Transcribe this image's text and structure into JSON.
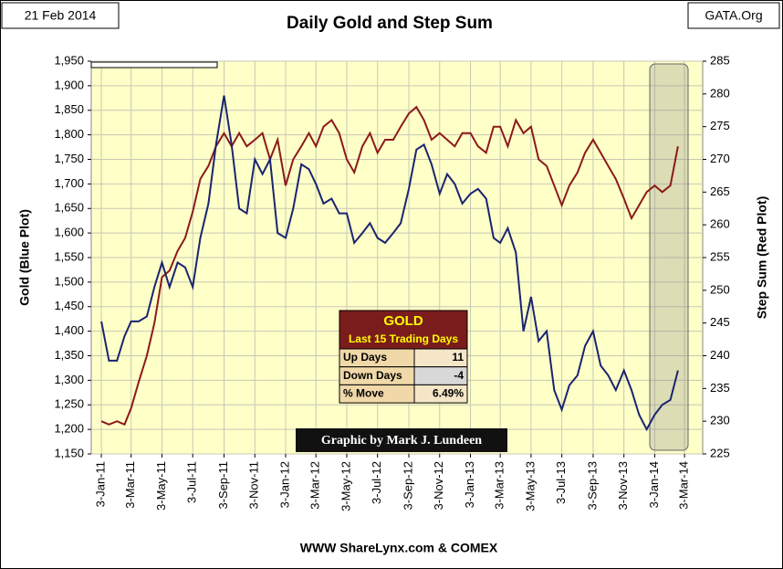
{
  "chart_data": {
    "type": "line",
    "title": "Daily Gold and Step Sum",
    "date_label": "21 Feb 2014",
    "source_label": "GATA.Org",
    "credit": "Graphic by Mark J. Lundeen",
    "footer": "WWW ShareLynx.com & COMEX",
    "ylabel": "Gold  (Blue Plot)",
    "y2label": "Step Sum  (Red Plot)",
    "x": [
      "3-Jan-11",
      "18-Jan-11",
      "3-Feb-11",
      "18-Feb-11",
      "3-Mar-11",
      "18-Mar-11",
      "3-Apr-11",
      "18-Apr-11",
      "3-May-11",
      "18-May-11",
      "3-Jun-11",
      "18-Jun-11",
      "3-Jul-11",
      "18-Jul-11",
      "3-Aug-11",
      "18-Aug-11",
      "3-Sep-11",
      "18-Sep-11",
      "3-Oct-11",
      "18-Oct-11",
      "3-Nov-11",
      "18-Nov-11",
      "3-Dec-11",
      "18-Dec-11",
      "3-Jan-12",
      "18-Jan-12",
      "3-Feb-12",
      "18-Feb-12",
      "3-Mar-12",
      "18-Mar-12",
      "3-Apr-12",
      "18-Apr-12",
      "3-May-12",
      "18-May-12",
      "3-Jun-12",
      "18-Jun-12",
      "3-Jul-12",
      "18-Jul-12",
      "3-Aug-12",
      "18-Aug-12",
      "3-Sep-12",
      "18-Sep-12",
      "3-Oct-12",
      "18-Oct-12",
      "3-Nov-12",
      "18-Nov-12",
      "3-Dec-12",
      "18-Dec-12",
      "3-Jan-13",
      "18-Jan-13",
      "3-Feb-13",
      "18-Feb-13",
      "3-Mar-13",
      "18-Mar-13",
      "3-Apr-13",
      "18-Apr-13",
      "3-May-13",
      "18-May-13",
      "3-Jun-13",
      "18-Jun-13",
      "3-Jul-13",
      "18-Jul-13",
      "3-Aug-13",
      "18-Aug-13",
      "3-Sep-13",
      "18-Sep-13",
      "3-Oct-13",
      "18-Oct-13",
      "3-Nov-13",
      "18-Nov-13",
      "3-Dec-13",
      "18-Dec-13",
      "3-Jan-14",
      "18-Jan-14",
      "3-Feb-14",
      "18-Feb-14"
    ],
    "series": [
      {
        "name": "Gold",
        "color": "#1a2470",
        "values": [
          1420,
          1340,
          1340,
          1390,
          1420,
          1420,
          1430,
          1490,
          1540,
          1490,
          1540,
          1530,
          1490,
          1590,
          1660,
          1780,
          1880,
          1780,
          1650,
          1640,
          1750,
          1720,
          1750,
          1600,
          1590,
          1650,
          1740,
          1730,
          1700,
          1660,
          1670,
          1640,
          1640,
          1580,
          1600,
          1620,
          1590,
          1580,
          1600,
          1620,
          1690,
          1770,
          1780,
          1740,
          1680,
          1720,
          1700,
          1660,
          1680,
          1690,
          1670,
          1590,
          1580,
          1610,
          1560,
          1400,
          1470,
          1380,
          1400,
          1280,
          1240,
          1290,
          1310,
          1370,
          1400,
          1330,
          1310,
          1280,
          1320,
          1280,
          1230,
          1200,
          1230,
          1250,
          1260,
          1320
        ]
      },
      {
        "name": "Step Sum",
        "color": "#8b1a1a",
        "axis": "y2",
        "values": [
          230,
          229.5,
          230,
          229.5,
          232,
          236,
          240,
          245,
          252,
          253,
          256,
          258,
          262,
          267,
          269,
          272,
          274,
          272,
          274,
          272,
          273,
          274,
          270,
          273,
          266,
          270,
          272,
          274,
          272,
          275,
          276,
          274,
          270,
          268,
          272,
          274,
          271,
          273,
          273,
          275,
          277,
          278,
          276,
          273,
          274,
          273,
          272,
          274,
          274,
          272,
          271,
          275,
          275,
          272,
          276,
          274,
          275,
          270,
          269,
          266,
          263,
          266,
          268,
          271,
          273,
          271,
          269,
          267,
          264,
          261,
          263,
          265,
          266,
          265,
          266,
          272
        ]
      }
    ],
    "xlim": [
      "14-Dec-10",
      "8-Apr-14"
    ],
    "xticks": [
      "3-Jan-11",
      "3-Mar-11",
      "3-May-11",
      "3-Jul-11",
      "3-Sep-11",
      "3-Nov-11",
      "3-Jan-12",
      "3-Mar-12",
      "3-May-12",
      "3-Jul-12",
      "3-Sep-12",
      "3-Nov-12",
      "3-Jan-13",
      "3-Mar-13",
      "3-May-13",
      "3-Jul-13",
      "3-Sep-13",
      "3-Nov-13",
      "3-Jan-14",
      "3-Mar-14"
    ],
    "ylim": [
      1150,
      1950
    ],
    "yticks": [
      {
        "value": 1150,
        "label": "1,150"
      },
      {
        "value": 1200,
        "label": "1,200"
      },
      {
        "value": 1250,
        "label": "1,250"
      },
      {
        "value": 1300,
        "label": "1,300"
      },
      {
        "value": 1350,
        "label": "1,350"
      },
      {
        "value": 1400,
        "label": "1,400"
      },
      {
        "value": 1450,
        "label": "1,450"
      },
      {
        "value": 1500,
        "label": "1,500"
      },
      {
        "value": 1550,
        "label": "1,550"
      },
      {
        "value": 1600,
        "label": "1,600"
      },
      {
        "value": 1650,
        "label": "1,650"
      },
      {
        "value": 1700,
        "label": "1,700"
      },
      {
        "value": 1750,
        "label": "1,750"
      },
      {
        "value": 1800,
        "label": "1,800"
      },
      {
        "value": 1850,
        "label": "1,850"
      },
      {
        "value": 1900,
        "label": "1,900"
      },
      {
        "value": 1950,
        "label": "1,950"
      }
    ],
    "y2lim": [
      225,
      285
    ],
    "y2ticks": [
      225,
      230,
      235,
      240,
      245,
      250,
      255,
      260,
      265,
      270,
      275,
      280,
      285
    ],
    "grid": true,
    "table": {
      "title": "GOLD",
      "subtitle": "Last 15 Trading Days",
      "rows": [
        [
          "Up Days",
          "11"
        ],
        [
          "Down Days",
          "-4"
        ],
        [
          "% Move",
          "6.49%"
        ]
      ]
    }
  }
}
